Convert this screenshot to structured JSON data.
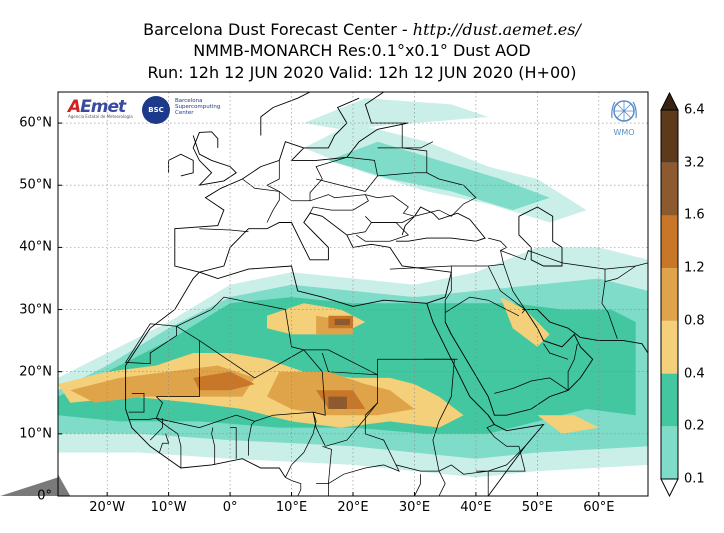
{
  "title": {
    "line1_text": "Barcelona Dust Forecast Center - ",
    "line1_url": "http://dust.aemet.es/",
    "line2": "NMMB-MONARCH   Res:0.1°x0.1°   Dust AOD",
    "line3": "Run: 12h 12 JUN 2020   Valid: 12h 12 JUN 2020 (H+00)"
  },
  "map": {
    "lon_range": [
      -28,
      68
    ],
    "lat_range": [
      0,
      65
    ],
    "lat_ticks": [
      "0°",
      "10°N",
      "20°N",
      "30°N",
      "40°N",
      "50°N",
      "60°N"
    ],
    "lon_ticks": [
      "20°W",
      "10°W",
      "0°",
      "10°E",
      "20°E",
      "30°E",
      "40°E",
      "50°E",
      "60°E"
    ],
    "grid": true
  },
  "colorbar": {
    "labels": [
      "0.1",
      "0.2",
      "0.4",
      "0.8",
      "1.2",
      "1.6",
      "3.2",
      "6.4"
    ],
    "colors": [
      "#c9efe8",
      "#7fdcc8",
      "#42c7a0",
      "#f5d07a",
      "#dfa34a",
      "#c87628",
      "#8c5a2e",
      "#5d3a1a",
      "#3a2210"
    ]
  },
  "logos": {
    "aemet_word_a": "A",
    "aemet_word_rest": "Emet",
    "aemet_sub": "Agencia Estatal de Meteorología",
    "bsc_circle": "BSC",
    "bsc_text_1": "Barcelona",
    "bsc_text_2": "Supercomputing",
    "bsc_text_3": "Center",
    "wmo": "WMO"
  },
  "chart_data": {
    "type": "heatmap",
    "variable": "Dust AOD",
    "color_levels": [
      0.1,
      0.2,
      0.4,
      0.8,
      1.2,
      1.6,
      3.2,
      6.4
    ],
    "xlim": [
      -28,
      68
    ],
    "ylim": [
      0,
      65
    ],
    "regions": [
      {
        "level": 0.1,
        "polygon": [
          [
            -28,
            19
          ],
          [
            -20,
            23
          ],
          [
            -10,
            28
          ],
          [
            0,
            34
          ],
          [
            10,
            36
          ],
          [
            20,
            35
          ],
          [
            30,
            34
          ],
          [
            40,
            36
          ],
          [
            50,
            40
          ],
          [
            60,
            40
          ],
          [
            68,
            38
          ],
          [
            68,
            5
          ],
          [
            50,
            4
          ],
          [
            40,
            3
          ],
          [
            20,
            5
          ],
          [
            0,
            6
          ],
          [
            -15,
            7
          ],
          [
            -28,
            7
          ]
        ]
      },
      {
        "level": 0.1,
        "polygon": [
          [
            12,
            56
          ],
          [
            20,
            60
          ],
          [
            32,
            57
          ],
          [
            42,
            53
          ],
          [
            50,
            51
          ],
          [
            58,
            46
          ],
          [
            52,
            44
          ],
          [
            42,
            47
          ],
          [
            32,
            49
          ],
          [
            22,
            52
          ]
        ]
      },
      {
        "level": 0.1,
        "polygon": [
          [
            12,
            60
          ],
          [
            22,
            64
          ],
          [
            36,
            63
          ],
          [
            42,
            61
          ],
          [
            30,
            60
          ],
          [
            18,
            59
          ]
        ]
      },
      {
        "level": 0.2,
        "polygon": [
          [
            -28,
            17
          ],
          [
            -20,
            21
          ],
          [
            -10,
            27
          ],
          [
            0,
            32
          ],
          [
            10,
            34
          ],
          [
            20,
            33
          ],
          [
            30,
            32
          ],
          [
            40,
            33
          ],
          [
            50,
            34
          ],
          [
            60,
            35
          ],
          [
            68,
            33
          ],
          [
            68,
            8
          ],
          [
            50,
            7
          ],
          [
            40,
            6
          ],
          [
            20,
            8
          ],
          [
            0,
            9
          ],
          [
            -15,
            10
          ],
          [
            -28,
            10
          ]
        ]
      },
      {
        "level": 0.2,
        "polygon": [
          [
            16,
            54
          ],
          [
            24,
            57
          ],
          [
            34,
            54
          ],
          [
            44,
            51
          ],
          [
            52,
            48
          ],
          [
            46,
            46
          ],
          [
            36,
            49
          ],
          [
            26,
            51
          ]
        ]
      },
      {
        "level": 0.4,
        "polygon": [
          [
            -28,
            16
          ],
          [
            -20,
            20
          ],
          [
            -10,
            25
          ],
          [
            0,
            31
          ],
          [
            10,
            32
          ],
          [
            20,
            31
          ],
          [
            30,
            31
          ],
          [
            38,
            31
          ],
          [
            46,
            31
          ],
          [
            54,
            30
          ],
          [
            62,
            30
          ],
          [
            66,
            28
          ],
          [
            66,
            13
          ],
          [
            58,
            14
          ],
          [
            50,
            12
          ],
          [
            42,
            10
          ],
          [
            32,
            10
          ],
          [
            20,
            11
          ],
          [
            8,
            11
          ],
          [
            -5,
            12
          ],
          [
            -18,
            12
          ],
          [
            -28,
            13
          ]
        ]
      },
      {
        "level": 0.8,
        "polygon": [
          [
            -28,
            18
          ],
          [
            -20,
            20
          ],
          [
            -12,
            21
          ],
          [
            -6,
            23
          ],
          [
            0,
            23
          ],
          [
            6,
            22
          ],
          [
            12,
            20
          ],
          [
            20,
            19
          ],
          [
            26,
            19
          ],
          [
            30,
            18
          ],
          [
            34,
            16
          ],
          [
            38,
            13
          ],
          [
            34,
            11
          ],
          [
            26,
            12
          ],
          [
            18,
            11
          ],
          [
            10,
            12
          ],
          [
            2,
            14
          ],
          [
            -6,
            15
          ],
          [
            -16,
            16
          ],
          [
            -26,
            15
          ]
        ]
      },
      {
        "level": 0.8,
        "polygon": [
          [
            6,
            29
          ],
          [
            12,
            31
          ],
          [
            18,
            30
          ],
          [
            22,
            28
          ],
          [
            18,
            26
          ],
          [
            10,
            26
          ],
          [
            6,
            27
          ]
        ]
      },
      {
        "level": 0.8,
        "polygon": [
          [
            44,
            32
          ],
          [
            48,
            30
          ],
          [
            52,
            26
          ],
          [
            50,
            24
          ],
          [
            46,
            27
          ]
        ]
      },
      {
        "level": 0.8,
        "polygon": [
          [
            50,
            13
          ],
          [
            56,
            13
          ],
          [
            60,
            11
          ],
          [
            54,
            10
          ]
        ]
      },
      {
        "level": 1.2,
        "polygon": [
          [
            -26,
            17
          ],
          [
            -18,
            19
          ],
          [
            -10,
            20
          ],
          [
            -2,
            21
          ],
          [
            4,
            19
          ],
          [
            2,
            16
          ],
          [
            -6,
            16
          ],
          [
            -14,
            16
          ],
          [
            -22,
            15
          ]
        ]
      },
      {
        "level": 1.2,
        "polygon": [
          [
            8,
            20
          ],
          [
            16,
            20
          ],
          [
            22,
            18
          ],
          [
            26,
            17
          ],
          [
            30,
            14
          ],
          [
            24,
            13
          ],
          [
            16,
            13
          ],
          [
            10,
            14
          ],
          [
            6,
            16
          ]
        ]
      },
      {
        "level": 1.2,
        "polygon": [
          [
            14,
            29
          ],
          [
            20,
            28
          ],
          [
            20,
            26
          ],
          [
            14,
            26
          ]
        ]
      },
      {
        "level": 1.6,
        "polygon": [
          [
            -6,
            19
          ],
          [
            0,
            20
          ],
          [
            4,
            18
          ],
          [
            0,
            17
          ],
          [
            -5,
            17
          ]
        ]
      },
      {
        "level": 1.6,
        "polygon": [
          [
            14,
            17
          ],
          [
            20,
            17
          ],
          [
            22,
            14
          ],
          [
            16,
            14
          ]
        ]
      },
      {
        "level": 1.6,
        "polygon": [
          [
            16,
            29
          ],
          [
            20,
            29
          ],
          [
            20,
            27
          ],
          [
            16,
            27
          ]
        ]
      },
      {
        "level": 3.2,
        "polygon": [
          [
            16,
            16
          ],
          [
            19,
            16
          ],
          [
            19,
            14
          ],
          [
            16,
            14
          ]
        ]
      },
      {
        "level": 3.2,
        "polygon": [
          [
            17,
            28.5
          ],
          [
            19.5,
            28.5
          ],
          [
            19.5,
            27.5
          ],
          [
            17,
            27.5
          ]
        ]
      }
    ]
  }
}
